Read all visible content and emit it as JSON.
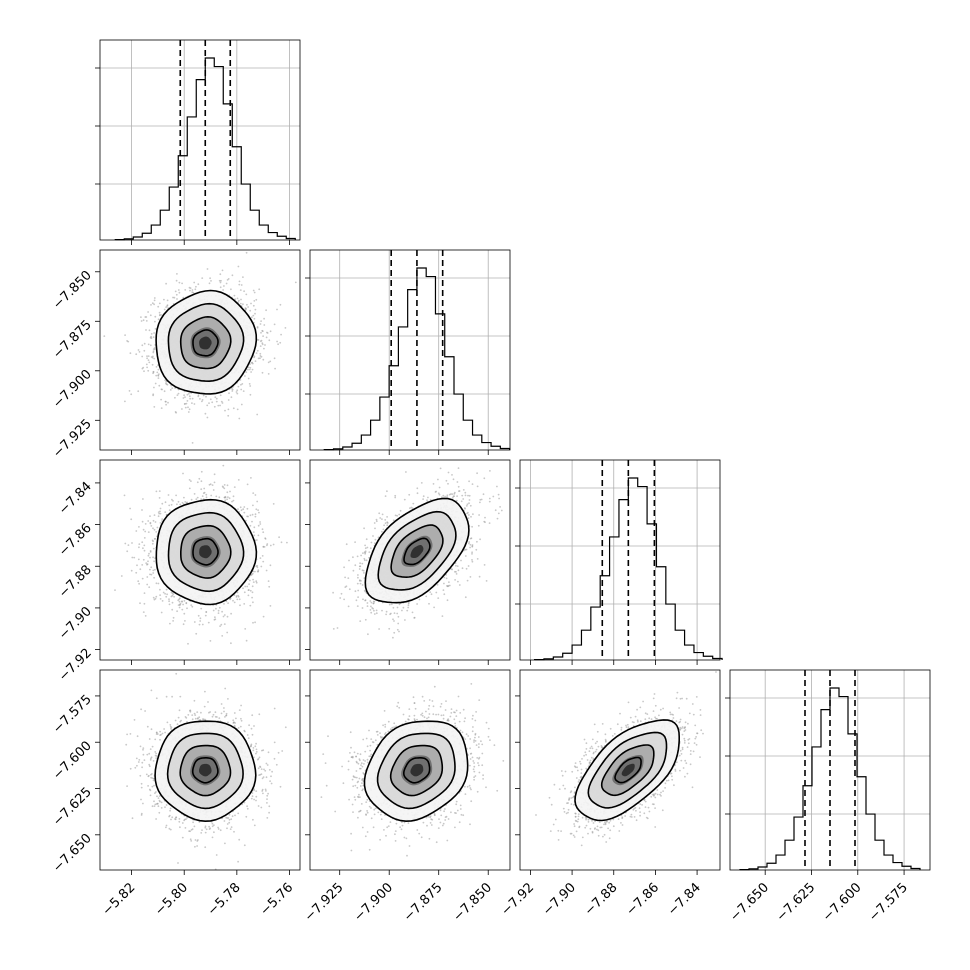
{
  "chart_data": {
    "type": "corner",
    "parameters": [
      {
        "mean": -5.792,
        "sigma": 0.0095,
        "q": [
          -5.8015,
          -5.792,
          -5.7825
        ],
        "axis": {
          "range": [
            -5.832,
            -5.756
          ],
          "ticks": [
            -5.82,
            -5.8,
            -5.78,
            -5.76
          ],
          "tick_labels": [
            "−5.82",
            "−5.80",
            "−5.78",
            "−5.76"
          ]
        },
        "hist_counts": [
          1,
          3,
          8,
          18,
          40,
          80,
          142,
          226,
          330,
          430,
          488,
          465,
          365,
          250,
          150,
          80,
          40,
          20,
          10,
          4
        ]
      },
      {
        "mean": -7.886,
        "sigma": 0.013,
        "q": [
          -7.899,
          -7.886,
          -7.873
        ],
        "axis": {
          "range": [
            -7.94,
            -7.839
          ],
          "ticks": [
            -7.925,
            -7.9,
            -7.875,
            -7.85
          ],
          "tick_labels": [
            "−7.925",
            "−7.900",
            "−7.875",
            "−7.850"
          ]
        },
        "hist_counts": [
          1,
          3,
          8,
          18,
          40,
          80,
          142,
          226,
          330,
          430,
          488,
          465,
          365,
          250,
          150,
          80,
          40,
          20,
          10,
          4
        ]
      },
      {
        "mean": -7.873,
        "sigma": 0.0125,
        "q": [
          -7.8855,
          -7.873,
          -7.8605
        ],
        "axis": {
          "range": [
            -7.925,
            -7.829
          ],
          "ticks": [
            -7.92,
            -7.9,
            -7.88,
            -7.86,
            -7.84
          ],
          "tick_labels": [
            "−7.92",
            "−7.90",
            "−7.88",
            "−7.86",
            "−7.84"
          ]
        },
        "hist_counts": [
          1,
          3,
          8,
          18,
          40,
          80,
          142,
          226,
          330,
          430,
          488,
          465,
          365,
          250,
          150,
          80,
          40,
          20,
          10,
          4
        ]
      },
      {
        "mean": -7.615,
        "sigma": 0.0135,
        "q": [
          -7.6285,
          -7.615,
          -7.6015
        ],
        "axis": {
          "range": [
            -7.669,
            -7.561
          ],
          "ticks": [
            -7.65,
            -7.625,
            -7.6,
            -7.575
          ],
          "tick_labels": [
            "−7.650",
            "−7.625",
            "−7.600",
            "−7.575"
          ]
        },
        "hist_counts": [
          1,
          3,
          8,
          18,
          40,
          80,
          142,
          226,
          330,
          430,
          488,
          465,
          365,
          250,
          150,
          80,
          40,
          20,
          10,
          4
        ]
      }
    ],
    "correlations": {
      "1-0": 0.05,
      "2-0": 0.0,
      "2-1": 0.5,
      "3-0": 0.0,
      "3-1": 0.2,
      "3-2": 0.6
    },
    "contour_levels_sigma": [
      0.5,
      1.0,
      1.5,
      2.0
    ],
    "grid": true,
    "quantile_lines": "dashed",
    "title": "",
    "xlabel": "",
    "ylabel": ""
  }
}
